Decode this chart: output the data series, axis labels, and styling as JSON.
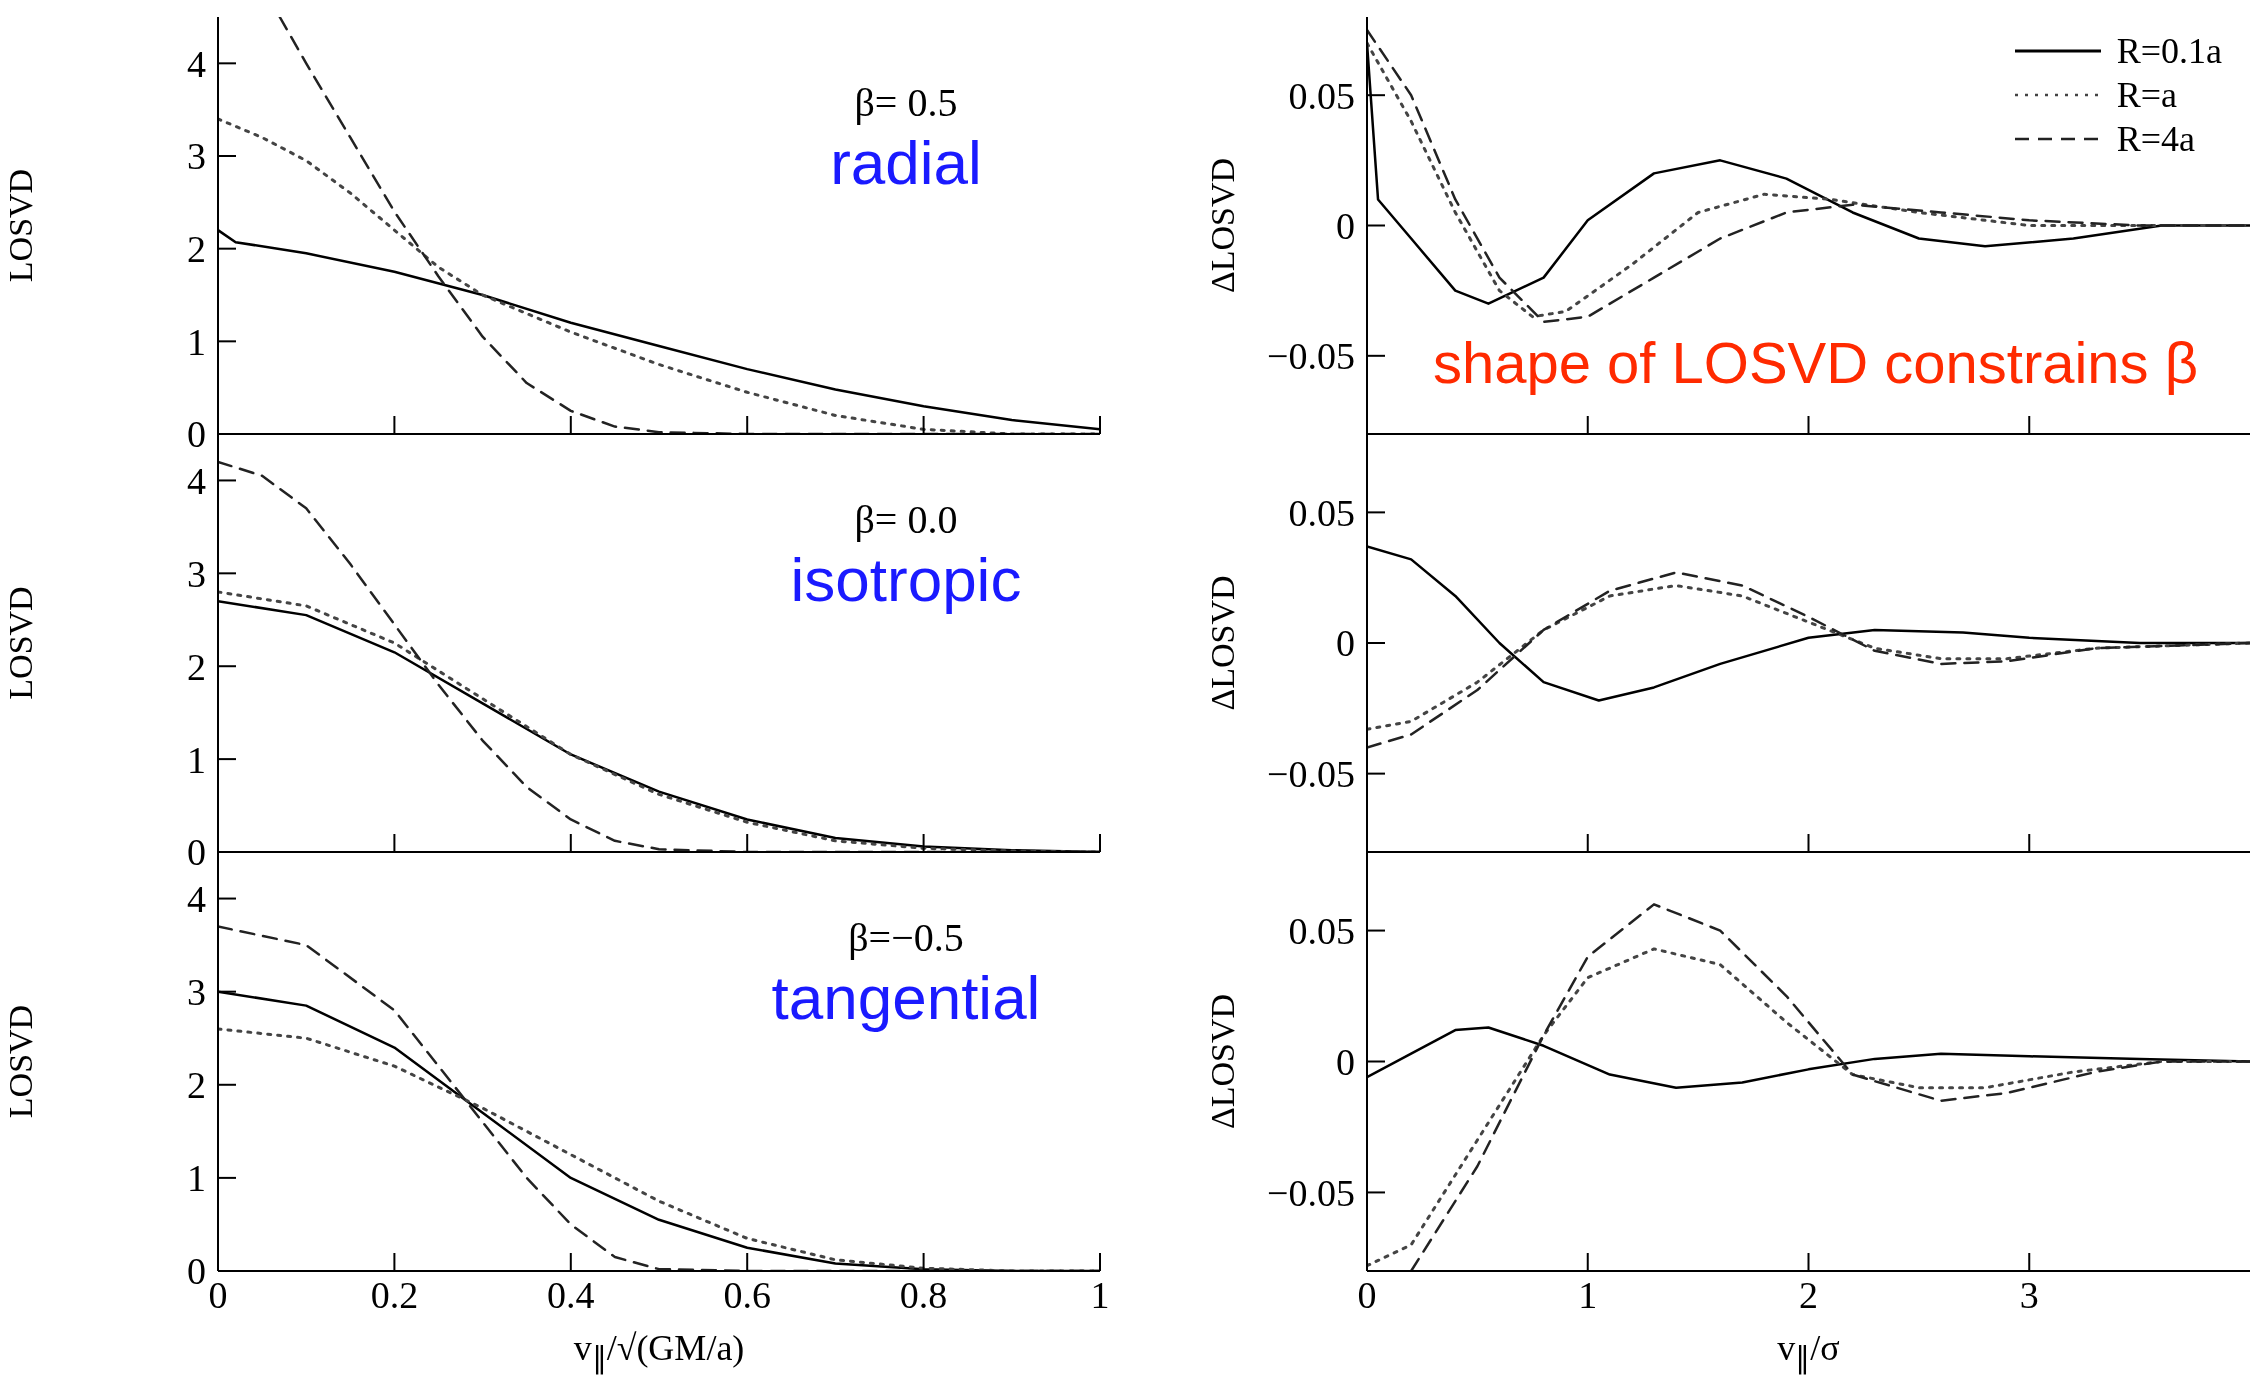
{
  "chart_data": [
    {
      "type": "line",
      "ylabel": "LOSVD",
      "xlim": [
        0,
        1
      ],
      "xticks": [
        0,
        0.2,
        0.4,
        0.6,
        0.8,
        1
      ],
      "ylim": [
        0,
        4.5
      ],
      "yticks": [
        0,
        1,
        2,
        3,
        4
      ],
      "tick_labels": "y",
      "annotations": [
        "β= 0.5",
        "radial"
      ],
      "series": [
        {
          "color": "#000000",
          "line_style": "solid",
          "x": [
            0,
            0.02,
            0.1,
            0.2,
            0.3,
            0.4,
            0.5,
            0.6,
            0.7,
            0.8,
            0.9,
            1
          ],
          "values": [
            2.2,
            2.07,
            1.95,
            1.75,
            1.5,
            1.2,
            0.95,
            0.7,
            0.48,
            0.3,
            0.15,
            0.05
          ]
        },
        {
          "color": "#444444",
          "line_style": "dotted",
          "x": [
            0,
            0.05,
            0.1,
            0.15,
            0.2,
            0.25,
            0.3,
            0.4,
            0.5,
            0.6,
            0.7,
            0.8,
            0.9,
            1
          ],
          "values": [
            3.4,
            3.2,
            2.95,
            2.6,
            2.2,
            1.8,
            1.5,
            1.1,
            0.75,
            0.45,
            0.2,
            0.05,
            0,
            0
          ]
        },
        {
          "color": "#222222",
          "line_style": "dashed",
          "x": [
            0.07,
            0.1,
            0.15,
            0.2,
            0.25,
            0.3,
            0.35,
            0.4,
            0.45,
            0.5,
            0.6,
            1
          ],
          "values": [
            4.5,
            4.0,
            3.2,
            2.4,
            1.7,
            1.05,
            0.55,
            0.25,
            0.08,
            0.02,
            0,
            0
          ]
        }
      ]
    },
    {
      "type": "line",
      "ylabel": "ΔLOSVD",
      "xlim": [
        0,
        4
      ],
      "xticks": [
        0,
        1,
        2,
        3
      ],
      "ylim": [
        -0.08,
        0.08
      ],
      "yticks": [
        -0.05,
        0,
        0.05
      ],
      "tick_labels": "y",
      "legend": "top right",
      "annotations": [
        "shape of LOSVD constrains β"
      ],
      "series": [
        {
          "name": "R=0.1a",
          "color": "#000000",
          "line_style": "solid",
          "x": [
            0,
            0.05,
            0.2,
            0.4,
            0.55,
            0.8,
            1,
            1.3,
            1.6,
            1.9,
            2.2,
            2.5,
            2.8,
            3.2,
            3.6,
            4
          ],
          "values": [
            0.07,
            0.01,
            -0.005,
            -0.025,
            -0.03,
            -0.02,
            0.002,
            0.02,
            0.025,
            0.018,
            0.005,
            -0.005,
            -0.008,
            -0.005,
            0,
            0
          ]
        },
        {
          "name": "R=a",
          "color": "#444444",
          "line_style": "dotted",
          "x": [
            0,
            0.2,
            0.4,
            0.6,
            0.75,
            0.9,
            1.2,
            1.5,
            1.8,
            2.1,
            2.5,
            3,
            3.5,
            4
          ],
          "values": [
            0.07,
            0.04,
            0.005,
            -0.025,
            -0.035,
            -0.033,
            -0.015,
            0.005,
            0.012,
            0.01,
            0.005,
            0,
            0,
            0
          ]
        },
        {
          "name": "R=4a",
          "color": "#222222",
          "line_style": "dashed",
          "x": [
            0,
            0.2,
            0.4,
            0.6,
            0.8,
            1,
            1.3,
            1.6,
            1.9,
            2.2,
            2.6,
            3,
            3.5,
            4
          ],
          "values": [
            0.075,
            0.05,
            0.01,
            -0.02,
            -0.037,
            -0.035,
            -0.02,
            -0.005,
            0.005,
            0.008,
            0.005,
            0.002,
            0,
            0
          ]
        }
      ]
    },
    {
      "type": "line",
      "ylabel": "LOSVD",
      "xlim": [
        0,
        1
      ],
      "xticks": [
        0,
        0.2,
        0.4,
        0.6,
        0.8,
        1
      ],
      "ylim": [
        0,
        4.5
      ],
      "yticks": [
        0,
        1,
        2,
        3,
        4
      ],
      "tick_labels": "y",
      "annotations": [
        "β= 0.0",
        "isotropic"
      ],
      "series": [
        {
          "color": "#000000",
          "line_style": "solid",
          "x": [
            0,
            0.1,
            0.2,
            0.3,
            0.4,
            0.5,
            0.6,
            0.7,
            0.8,
            0.9,
            1
          ],
          "values": [
            2.7,
            2.55,
            2.15,
            1.6,
            1.05,
            0.65,
            0.35,
            0.15,
            0.06,
            0.02,
            0
          ]
        },
        {
          "color": "#444444",
          "line_style": "dotted",
          "x": [
            0,
            0.1,
            0.2,
            0.3,
            0.4,
            0.5,
            0.6,
            0.7,
            0.8,
            0.9,
            1
          ],
          "values": [
            2.8,
            2.65,
            2.25,
            1.65,
            1.05,
            0.62,
            0.32,
            0.12,
            0.04,
            0.01,
            0
          ]
        },
        {
          "color": "#222222",
          "line_style": "dashed",
          "x": [
            0,
            0.05,
            0.1,
            0.15,
            0.2,
            0.25,
            0.3,
            0.35,
            0.4,
            0.45,
            0.5,
            0.6,
            1
          ],
          "values": [
            4.2,
            4.05,
            3.7,
            3.1,
            2.45,
            1.8,
            1.2,
            0.7,
            0.35,
            0.12,
            0.03,
            0,
            0
          ]
        }
      ]
    },
    {
      "type": "line",
      "ylabel": "ΔLOSVD",
      "xlim": [
        0,
        4
      ],
      "xticks": [
        0,
        1,
        2,
        3
      ],
      "ylim": [
        -0.08,
        0.08
      ],
      "yticks": [
        -0.05,
        0,
        0.05
      ],
      "tick_labels": "y",
      "series": [
        {
          "color": "#000000",
          "line_style": "solid",
          "x": [
            0,
            0.2,
            0.4,
            0.6,
            0.8,
            1.05,
            1.3,
            1.6,
            2,
            2.3,
            2.7,
            3,
            3.5,
            4
          ],
          "values": [
            0.037,
            0.032,
            0.018,
            0,
            -0.015,
            -0.022,
            -0.017,
            -0.008,
            0.002,
            0.005,
            0.004,
            0.002,
            0,
            0
          ]
        },
        {
          "color": "#444444",
          "line_style": "dotted",
          "x": [
            0,
            0.2,
            0.5,
            0.8,
            1.1,
            1.4,
            1.7,
            2,
            2.3,
            2.6,
            2.9,
            3.3,
            4
          ],
          "values": [
            -0.033,
            -0.03,
            -0.015,
            0.005,
            0.018,
            0.022,
            0.018,
            0.008,
            -0.002,
            -0.006,
            -0.006,
            -0.002,
            0
          ]
        },
        {
          "color": "#222222",
          "line_style": "dashed",
          "x": [
            0,
            0.2,
            0.5,
            0.8,
            1.1,
            1.4,
            1.7,
            2,
            2.3,
            2.6,
            2.9,
            3.3,
            4
          ],
          "values": [
            -0.04,
            -0.035,
            -0.018,
            0.005,
            0.02,
            0.027,
            0.022,
            0.01,
            -0.003,
            -0.008,
            -0.007,
            -0.002,
            0
          ]
        }
      ]
    },
    {
      "type": "line",
      "ylabel": "LOSVD",
      "xlabel": "v$_{∥}$/√(GM/a)",
      "xlim": [
        0,
        1
      ],
      "xticks": [
        0,
        0.2,
        0.4,
        0.6,
        0.8,
        1
      ],
      "ylim": [
        0,
        4.5
      ],
      "yticks": [
        0,
        1,
        2,
        3,
        4
      ],
      "annotations": [
        "β=−0.5",
        "tangential"
      ],
      "series": [
        {
          "color": "#000000",
          "line_style": "solid",
          "x": [
            0,
            0.1,
            0.2,
            0.3,
            0.4,
            0.5,
            0.6,
            0.7,
            0.8,
            0.9,
            1
          ],
          "values": [
            3.0,
            2.85,
            2.4,
            1.7,
            1.0,
            0.55,
            0.25,
            0.08,
            0.02,
            0,
            0
          ]
        },
        {
          "color": "#444444",
          "line_style": "dotted",
          "x": [
            0,
            0.1,
            0.2,
            0.3,
            0.4,
            0.5,
            0.6,
            0.7,
            0.8,
            0.9,
            1
          ],
          "values": [
            2.6,
            2.5,
            2.2,
            1.75,
            1.25,
            0.75,
            0.35,
            0.12,
            0.03,
            0,
            0
          ]
        },
        {
          "color": "#222222",
          "line_style": "dashed",
          "x": [
            0,
            0.1,
            0.2,
            0.3,
            0.35,
            0.4,
            0.45,
            0.5,
            0.6,
            1
          ],
          "values": [
            3.7,
            3.5,
            2.8,
            1.6,
            1.0,
            0.5,
            0.15,
            0.02,
            0,
            0
          ]
        }
      ]
    },
    {
      "type": "line",
      "ylabel": "ΔLOSVD",
      "xlabel": "v$_{∥}$/σ",
      "xlim": [
        0,
        4
      ],
      "xticks": [
        0,
        1,
        2,
        3
      ],
      "ylim": [
        -0.08,
        0.08
      ],
      "yticks": [
        -0.05,
        0,
        0.05
      ],
      "series": [
        {
          "color": "#000000",
          "line_style": "solid",
          "x": [
            0,
            0.2,
            0.4,
            0.55,
            0.8,
            1.1,
            1.4,
            1.7,
            2,
            2.3,
            2.6,
            3,
            3.5,
            4
          ],
          "values": [
            -0.006,
            0.003,
            0.012,
            0.013,
            0.006,
            -0.005,
            -0.01,
            -0.008,
            -0.003,
            0.001,
            0.003,
            0.002,
            0.001,
            0
          ]
        },
        {
          "color": "#444444",
          "line_style": "dotted",
          "x": [
            0,
            0.2,
            0.5,
            0.8,
            1,
            1.3,
            1.6,
            1.9,
            2.2,
            2.5,
            2.8,
            3.2,
            3.6,
            4
          ],
          "values": [
            -0.078,
            -0.07,
            -0.03,
            0.01,
            0.032,
            0.043,
            0.037,
            0.015,
            -0.005,
            -0.01,
            -0.01,
            -0.004,
            0,
            0
          ]
        },
        {
          "color": "#222222",
          "line_style": "dashed",
          "x": [
            0.2,
            0.5,
            0.8,
            1,
            1.3,
            1.6,
            1.9,
            2.2,
            2.6,
            2.9,
            3.3,
            3.6,
            4
          ],
          "values": [
            -0.08,
            -0.04,
            0.01,
            0.04,
            0.06,
            0.05,
            0.025,
            -0.005,
            -0.015,
            -0.012,
            -0.004,
            0,
            0
          ]
        }
      ]
    }
  ]
}
